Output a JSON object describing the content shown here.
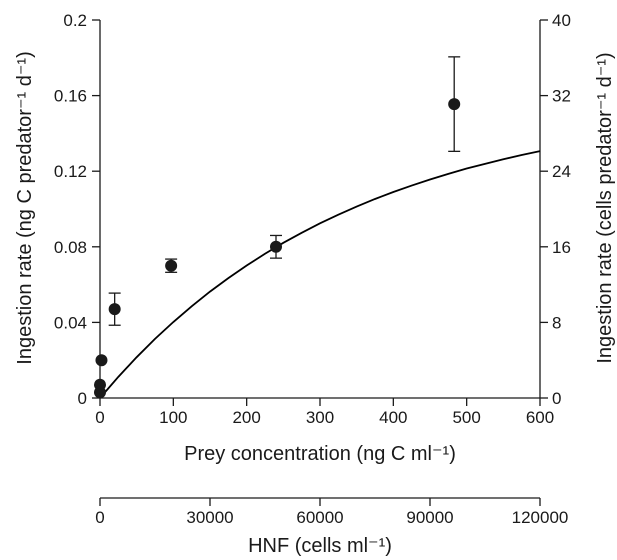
{
  "chart_data": {
    "type": "scatter",
    "title": "",
    "xlabel": "Prey concentration (ng C ml⁻¹)",
    "ylabel": "Ingestion rate (ng C predator⁻¹ d⁻¹)",
    "y2label": "Ingestion rate (cells predator⁻¹ d⁻¹)",
    "x2label": "HNF (cells ml⁻¹)",
    "xlim": [
      0,
      600
    ],
    "ylim": [
      0,
      0.2
    ],
    "y2lim": [
      0,
      40
    ],
    "x2lim": [
      0,
      120000
    ],
    "xticks": [
      0,
      100,
      200,
      300,
      400,
      500,
      600
    ],
    "xtick_labels": [
      "0",
      "100",
      "200",
      "300",
      "400",
      "500",
      "600"
    ],
    "yticks": [
      0,
      0.04,
      0.08,
      0.12,
      0.16,
      0.2
    ],
    "ytick_labels": [
      "0",
      "0.04",
      "0.08",
      "0.12",
      "0.16",
      "0.2"
    ],
    "y2ticks": [
      0,
      8,
      16,
      24,
      32,
      40
    ],
    "y2tick_labels": [
      "0",
      "8",
      "16",
      "24",
      "32",
      "40"
    ],
    "x2ticks": [
      0,
      30000,
      60000,
      90000,
      120000
    ],
    "x2tick_labels": [
      "0",
      "30000",
      "60000",
      "90000",
      "120000"
    ],
    "grid": false,
    "points": [
      {
        "x": 0,
        "y": 0.003,
        "err": 0
      },
      {
        "x": 0,
        "y": 0.007,
        "err": 0
      },
      {
        "x": 2,
        "y": 0.02,
        "err": 0
      },
      {
        "x": 20,
        "y": 0.047,
        "err": 0.0085
      },
      {
        "x": 97,
        "y": 0.07,
        "err": 0.0035
      },
      {
        "x": 240,
        "y": 0.08,
        "err": 0.006
      },
      {
        "x": 483,
        "y": 0.1555,
        "err": 0.025
      }
    ],
    "fit_curve": {
      "x": [
        0,
        25,
        50,
        75,
        100,
        125,
        150,
        175,
        200,
        225,
        250,
        275,
        300,
        325,
        350,
        375,
        400,
        425,
        450,
        475,
        500,
        525,
        550,
        575,
        600
      ],
      "y": [
        0.0,
        0.0112,
        0.0216,
        0.0313,
        0.0402,
        0.0485,
        0.0563,
        0.0634,
        0.0701,
        0.0763,
        0.0821,
        0.0874,
        0.0924,
        0.097,
        0.1013,
        0.1053,
        0.109,
        0.1124,
        0.1156,
        0.1186,
        0.1214,
        0.1239,
        0.1263,
        0.1286,
        0.1306
      ]
    }
  }
}
